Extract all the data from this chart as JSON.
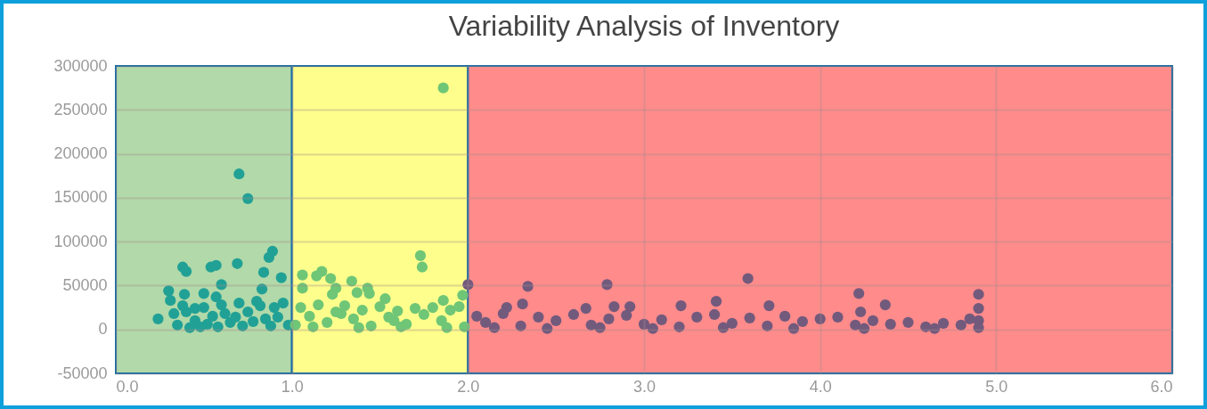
{
  "chart_data": {
    "type": "scatter",
    "title": "Variability Analysis of Inventory",
    "xlim": [
      0,
      6
    ],
    "xticks": [
      {
        "value": 0,
        "label": "0.0"
      },
      {
        "value": 1,
        "label": "1.0"
      },
      {
        "value": 2,
        "label": "2.0"
      },
      {
        "value": 3,
        "label": "3.0"
      },
      {
        "value": 4,
        "label": "4.0"
      },
      {
        "value": 5,
        "label": "5.0"
      },
      {
        "value": 6,
        "label": "6.0"
      }
    ],
    "ylim": [
      -50000,
      300000
    ],
    "yticks": [
      -50000,
      0,
      50000,
      100000,
      150000,
      200000,
      250000,
      300000
    ],
    "grid": true,
    "marker": "circle",
    "bands": [
      {
        "axis": "x",
        "from": 0,
        "to": 1,
        "color": "#b2d9a9"
      },
      {
        "axis": "x",
        "from": 1,
        "to": 2,
        "color": "#fefe8c"
      },
      {
        "axis": "x",
        "from": 2,
        "to": 6,
        "color": "#ff8b8b"
      }
    ],
    "series": [
      {
        "color": "#21a196",
        "x": [
          0.7,
          0.75,
          0.89,
          0.87,
          0.69,
          0.38,
          0.4,
          0.54,
          0.57,
          0.84,
          0.94,
          0.24,
          0.3,
          0.6,
          0.83,
          0.5,
          0.39,
          0.57,
          0.31,
          0.35,
          0.4,
          0.45,
          0.5,
          0.55,
          0.6,
          0.65,
          0.7,
          0.75,
          0.8,
          0.85,
          0.9,
          0.95,
          0.98,
          0.33,
          0.42,
          0.48,
          0.58,
          0.62,
          0.68,
          0.72,
          0.78,
          0.82,
          0.88,
          0.92,
          0.38,
          0.52,
          0.45
        ],
        "values": [
          177000,
          149000,
          89000,
          82000,
          75000,
          71000,
          66000,
          71000,
          73000,
          65000,
          59000,
          12000,
          44000,
          51000,
          46000,
          41000,
          40000,
          37000,
          33000,
          5000,
          20000,
          10000,
          25000,
          15000,
          28000,
          8000,
          30000,
          20000,
          32000,
          12000,
          25000,
          30000,
          5000,
          18000,
          2000,
          3000,
          3000,
          18000,
          14000,
          4000,
          9000,
          27000,
          4000,
          14000,
          27000,
          6000,
          24000
        ]
      },
      {
        "color": "#6fc677",
        "x": [
          1.86,
          1.73,
          1.74,
          1.06,
          1.14,
          1.17,
          1.22,
          1.34,
          1.43,
          1.06,
          1.25,
          1.37,
          1.23,
          1.44,
          1.53,
          1.86,
          1.97,
          1.02,
          1.05,
          1.1,
          1.15,
          1.2,
          1.25,
          1.3,
          1.35,
          1.4,
          1.45,
          1.5,
          1.55,
          1.6,
          1.65,
          1.7,
          1.75,
          1.8,
          1.85,
          1.9,
          1.95,
          1.98,
          1.12,
          1.38,
          1.62,
          1.88,
          1.28,
          1.58
        ],
        "values": [
          275000,
          84000,
          71000,
          62000,
          61000,
          66000,
          58000,
          55000,
          47000,
          47000,
          47000,
          42000,
          40000,
          41000,
          35000,
          33000,
          39000,
          5000,
          25000,
          15000,
          28000,
          8000,
          20000,
          27000,
          12000,
          22000,
          4000,
          26000,
          14000,
          21000,
          6000,
          24000,
          17000,
          25000,
          10000,
          22000,
          26000,
          3000,
          3000,
          2000,
          3000,
          2000,
          18000,
          10000
        ]
      },
      {
        "color": "#725a7d",
        "x": [
          2.0,
          2.34,
          2.79,
          3.59,
          3.41,
          3.71,
          3.21,
          2.92,
          2.83,
          2.67,
          2.31,
          2.22,
          4.22,
          4.23,
          4.37,
          4.9,
          4.9,
          4.9,
          4.85,
          2.05,
          2.1,
          2.2,
          2.3,
          2.4,
          2.5,
          2.6,
          2.7,
          2.8,
          2.9,
          3.0,
          3.1,
          3.2,
          3.3,
          3.4,
          3.5,
          3.6,
          3.7,
          3.8,
          3.9,
          4.0,
          4.1,
          4.2,
          4.3,
          4.4,
          4.5,
          4.6,
          4.7,
          4.8,
          4.9,
          2.15,
          2.45,
          2.75,
          3.05,
          3.45,
          3.85,
          4.25,
          4.65
        ],
        "values": [
          51000,
          49000,
          51000,
          58000,
          32000,
          27000,
          27000,
          26000,
          26000,
          24000,
          29000,
          25000,
          41000,
          20000,
          28000,
          40000,
          24000,
          10000,
          12000,
          15000,
          8000,
          18000,
          4000,
          14000,
          10000,
          17000,
          5000,
          12000,
          16000,
          6000,
          11000,
          3000,
          14000,
          17000,
          7000,
          13000,
          4000,
          15000,
          9000,
          12000,
          14000,
          5000,
          10000,
          6000,
          8000,
          3000,
          7000,
          5000,
          2000,
          2000,
          1000,
          2000,
          1000,
          2000,
          1000,
          1000,
          1000
        ]
      }
    ]
  }
}
